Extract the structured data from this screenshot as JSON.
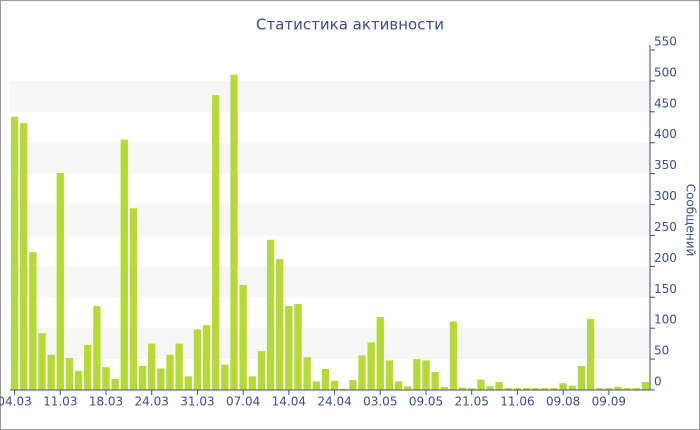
{
  "chart_data": {
    "type": "bar",
    "title": "Статистика активности",
    "y_label": "Сообщений",
    "categories": [
      "04.03",
      null,
      null,
      null,
      null,
      "11.03",
      null,
      null,
      null,
      null,
      "18.03",
      null,
      null,
      null,
      null,
      "24.03",
      null,
      null,
      null,
      null,
      "31.03",
      null,
      null,
      null,
      null,
      "07.04",
      null,
      null,
      null,
      null,
      "14.04",
      null,
      null,
      null,
      null,
      "24.04",
      null,
      null,
      null,
      null,
      "03.05",
      null,
      null,
      null,
      null,
      "09.05",
      null,
      null,
      null,
      null,
      "21.05",
      null,
      null,
      null,
      null,
      "11.06",
      null,
      null,
      null,
      null,
      "09.08",
      null,
      null,
      null,
      null,
      "09.09",
      null,
      null,
      null,
      null
    ],
    "values": [
      442,
      432,
      223,
      92,
      57,
      351,
      52,
      31,
      73,
      136,
      37,
      18,
      405,
      294,
      39,
      75,
      35,
      57,
      75,
      22,
      98,
      105,
      477,
      41,
      510,
      170,
      22,
      63,
      243,
      212,
      136,
      139,
      53,
      14,
      34,
      15,
      2,
      16,
      56,
      77,
      118,
      48,
      14,
      6,
      50,
      48,
      29,
      5,
      111,
      4,
      3,
      17,
      6,
      13,
      3,
      3,
      3,
      3,
      3,
      3,
      11,
      7,
      39,
      115,
      3,
      3,
      5,
      3,
      3,
      13
    ],
    "color": "#b6da35",
    "ylim": [
      0,
      550
    ],
    "yticks": [
      0,
      50,
      100,
      150,
      200,
      250,
      300,
      350,
      400,
      450,
      500,
      550
    ],
    "y_axis_side": "right",
    "grid": "bands"
  }
}
